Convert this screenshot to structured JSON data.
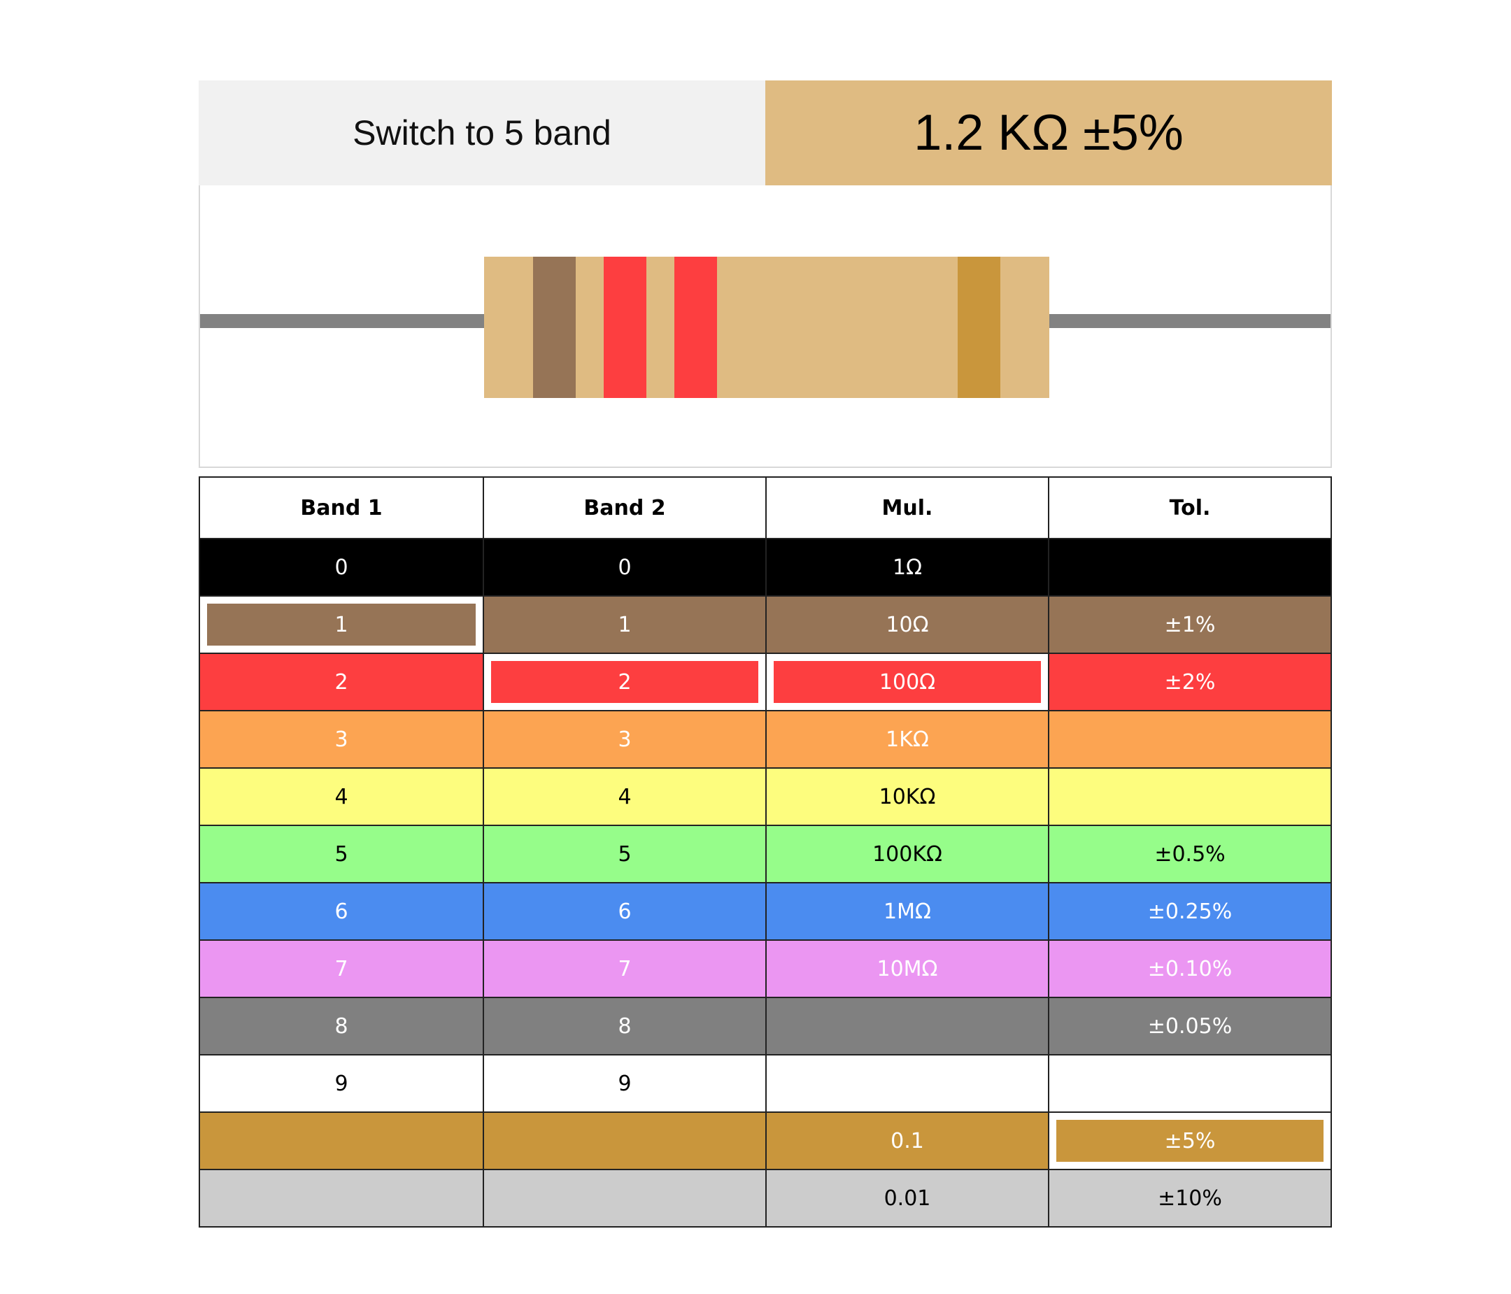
{
  "header": {
    "switch_label": "Switch to 5 band",
    "value_label": "1.2 KΩ ±5%"
  },
  "resistor": {
    "body_color": "#dfbb82",
    "bands": [
      "#967456",
      "#fd3e40",
      "#fd3e40",
      "#c9963c"
    ]
  },
  "table": {
    "columns": [
      "Band 1",
      "Band 2",
      "Mul.",
      "Tol."
    ],
    "rows": [
      {
        "color": "#000000",
        "text_color": "#ffffff",
        "cells": [
          "0",
          "0",
          "1Ω",
          ""
        ]
      },
      {
        "color": "#967456",
        "text_color": "#ffffff",
        "cells": [
          "1",
          "1",
          "10Ω",
          "±1%"
        ]
      },
      {
        "color": "#fd3e40",
        "text_color": "#ffffff",
        "cells": [
          "2",
          "2",
          "100Ω",
          "±2%"
        ]
      },
      {
        "color": "#fca452",
        "text_color": "#ffffff",
        "cells": [
          "3",
          "3",
          "1KΩ",
          ""
        ]
      },
      {
        "color": "#fdfd7e",
        "text_color": "#000000",
        "cells": [
          "4",
          "4",
          "10KΩ",
          ""
        ]
      },
      {
        "color": "#96fd8a",
        "text_color": "#000000",
        "cells": [
          "5",
          "5",
          "100KΩ",
          "±0.5%"
        ]
      },
      {
        "color": "#4b8cf0",
        "text_color": "#ffffff",
        "cells": [
          "6",
          "6",
          "1MΩ",
          "±0.25%"
        ]
      },
      {
        "color": "#eb96f2",
        "text_color": "#ffffff",
        "cells": [
          "7",
          "7",
          "10MΩ",
          "±0.10%"
        ]
      },
      {
        "color": "#808080",
        "text_color": "#ffffff",
        "cells": [
          "8",
          "8",
          "",
          "±0.05%"
        ]
      },
      {
        "color": "#ffffff",
        "text_color": "#000000",
        "cells": [
          "9",
          "9",
          "",
          ""
        ]
      },
      {
        "color": "#c9963c",
        "text_color": "#ffffff",
        "cells": [
          "",
          "",
          "0.1",
          "±5%"
        ]
      },
      {
        "color": "#cccccc",
        "text_color": "#000000",
        "cells": [
          "",
          "",
          "0.01",
          "±10%"
        ]
      }
    ],
    "selected": {
      "band1": 1,
      "band2": 2,
      "multiplier": 2,
      "tolerance": 10
    }
  }
}
